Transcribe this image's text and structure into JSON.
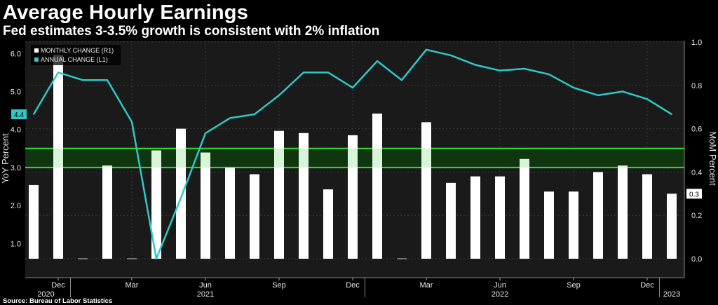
{
  "title": "Average Hourly Earnings",
  "subtitle": "Fed estimates 3-3.5% growth is consistent with 2% inflation",
  "source": "Source: Bureau of Labor Statistics",
  "colors": {
    "background": "#000000",
    "plot_background": "#1a1a1a",
    "bars": "#ffffff",
    "line": "#2ec8c8",
    "band_lines": "#33dd33",
    "band_fill": "#0f3a0f",
    "grid": "#3a3a3a"
  },
  "chart_data": {
    "type": "bar",
    "title": "Average Hourly Earnings",
    "subtitle": "Fed estimates 3-3.5% growth is consistent with 2% inflation",
    "categories": [
      "Nov 2020",
      "Dec 2020",
      "Jan 2021",
      "Feb 2021",
      "Mar 2021",
      "Apr 2021",
      "May 2021",
      "Jun 2021",
      "Jul 2021",
      "Aug 2021",
      "Sep 2021",
      "Oct 2021",
      "Nov 2021",
      "Dec 2021",
      "Jan 2022",
      "Feb 2022",
      "Mar 2022",
      "Apr 2022",
      "May 2022",
      "Jun 2022",
      "Jul 2022",
      "Aug 2022",
      "Sep 2022",
      "Oct 2022",
      "Nov 2022",
      "Dec 2022",
      "Jan 2023"
    ],
    "x_tick_labels": [
      "Dec",
      "Mar",
      "Jun",
      "Sep",
      "Dec",
      "Mar",
      "Jun",
      "Sep",
      "Dec"
    ],
    "x_tick_indices": [
      1,
      4,
      7,
      10,
      13,
      16,
      19,
      22,
      25
    ],
    "year_labels": [
      {
        "label": "2020",
        "index": 0.5
      },
      {
        "label": "2021",
        "index": 7
      },
      {
        "label": "2022",
        "index": 19
      },
      {
        "label": "2023",
        "index": 26
      }
    ],
    "year_dividers": [
      1.5,
      13.5,
      25.5
    ],
    "series": [
      {
        "name": "MONTHLY CHANGE (R1)",
        "type": "bar",
        "axis": "right",
        "values": [
          0.34,
          0.94,
          0.0,
          0.43,
          0.0,
          0.5,
          0.6,
          0.49,
          0.42,
          0.39,
          0.59,
          0.58,
          0.32,
          0.57,
          0.67,
          0.0,
          0.63,
          0.35,
          0.38,
          0.38,
          0.46,
          0.31,
          0.31,
          0.4,
          0.43,
          0.39,
          0.3
        ]
      },
      {
        "name": "ANNUAL CHANGE (L1)",
        "type": "line",
        "axis": "left",
        "values": [
          4.4,
          5.5,
          5.3,
          5.3,
          4.2,
          0.6,
          2.2,
          3.9,
          4.3,
          4.4,
          4.9,
          5.5,
          5.5,
          5.1,
          5.8,
          5.3,
          6.1,
          5.95,
          5.7,
          5.55,
          5.6,
          5.45,
          5.1,
          4.9,
          5.0,
          4.8,
          4.4
        ]
      }
    ],
    "band": {
      "from": 3.0,
      "to": 3.5,
      "axis": "left"
    },
    "y_left": {
      "label": "YoY Percent",
      "ticks": [
        1.0,
        2.0,
        3.0,
        4.0,
        5.0,
        6.0
      ],
      "tick_labels": [
        "1.0",
        "2.0",
        "3.0",
        "4.0",
        "5.0",
        "6.0"
      ],
      "range": [
        0.6,
        6.3
      ]
    },
    "y_right": {
      "label": "MoM Percent",
      "ticks": [
        0.0,
        0.2,
        0.4,
        0.6,
        0.8,
        1.0
      ],
      "tick_labels": [
        "0.0",
        "0.2",
        "0.4",
        "0.6",
        "0.8",
        "1.0"
      ],
      "range": [
        0.0,
        1.0
      ]
    },
    "last_value_badges": {
      "left": "4.4",
      "right": "0.3"
    },
    "grid": true,
    "legend_position": "top-left"
  }
}
